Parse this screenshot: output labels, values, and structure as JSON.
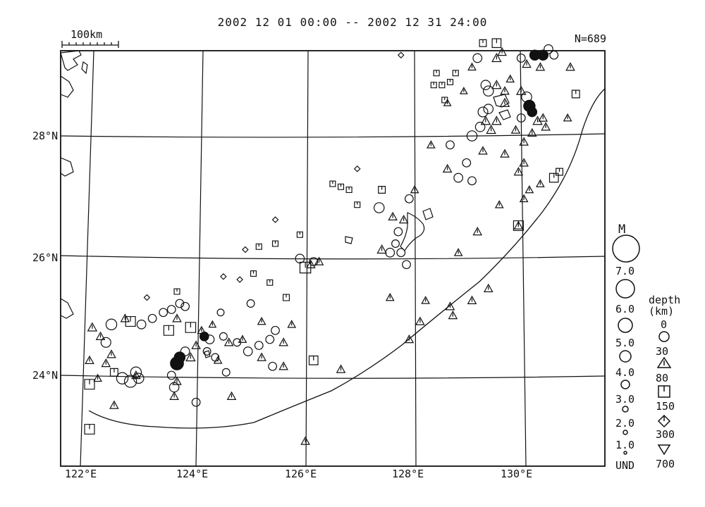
{
  "title": "2002 12 01 00:00 -- 2002 12 31 24:00",
  "count": "N=689",
  "scale_label": "100km",
  "lat_labels": [
    "28°N",
    "26°N",
    "24°N"
  ],
  "lon_labels": [
    "122°E",
    "124°E",
    "126°E",
    "128°E",
    "130°E"
  ],
  "magnitude_legend": {
    "title": "M",
    "labels": [
      "7.0",
      "6.0",
      "5.0",
      "4.0",
      "3.0",
      "2.0",
      "1.0",
      "UND"
    ]
  },
  "depth_legend": {
    "title_1": "depth",
    "title_2": "(km)",
    "labels": [
      "0",
      "30",
      "80",
      "150",
      "300",
      "700"
    ],
    "symbols": [
      "circle",
      "triangle",
      "square",
      "diamond",
      "inverted-triangle"
    ]
  },
  "chart_data": {
    "type": "scatter",
    "title": "2002 12 01 00:00 -- 2002 12 31 24:00",
    "count": 689,
    "xlim": [
      121.7,
      131.3
    ],
    "ylim": [
      22.3,
      29.5
    ],
    "events": [
      {
        "lon": 122.4,
        "lat": 24.85,
        "m": 2.8,
        "d": "circle"
      },
      {
        "lon": 122.3,
        "lat": 24.55,
        "m": 2.5,
        "d": "circle"
      },
      {
        "lon": 122.05,
        "lat": 24.8,
        "m": 2.2,
        "d": "triangle"
      },
      {
        "lon": 122.2,
        "lat": 24.65,
        "m": 2.0,
        "d": "triangle"
      },
      {
        "lon": 122.0,
        "lat": 24.25,
        "m": 2.0,
        "d": "triangle"
      },
      {
        "lon": 122.3,
        "lat": 24.2,
        "m": 2.0,
        "d": "triangle"
      },
      {
        "lon": 122.4,
        "lat": 24.35,
        "m": 2.0,
        "d": "triangle"
      },
      {
        "lon": 122.45,
        "lat": 24.05,
        "m": 1.8,
        "d": "square"
      },
      {
        "lon": 122.15,
        "lat": 23.95,
        "m": 1.8,
        "d": "triangle"
      },
      {
        "lon": 122.0,
        "lat": 23.85,
        "m": 2.5,
        "d": "square"
      },
      {
        "lon": 122.45,
        "lat": 23.5,
        "m": 2.0,
        "d": "triangle"
      },
      {
        "lon": 122.0,
        "lat": 23.1,
        "m": 2.5,
        "d": "square"
      },
      {
        "lon": 122.6,
        "lat": 23.95,
        "m": 3.0,
        "d": "circle"
      },
      {
        "lon": 122.75,
        "lat": 23.9,
        "m": 3.2,
        "d": "circle"
      },
      {
        "lon": 122.85,
        "lat": 24.05,
        "m": 2.8,
        "d": "circle"
      },
      {
        "lon": 122.9,
        "lat": 23.95,
        "m": 2.6,
        "d": "circle"
      },
      {
        "lon": 122.85,
        "lat": 24.0,
        "m": 2.0,
        "d": "triangle"
      },
      {
        "lon": 122.75,
        "lat": 24.9,
        "m": 2.5,
        "d": "square"
      },
      {
        "lon": 122.65,
        "lat": 24.95,
        "m": 2.0,
        "d": "triangle"
      },
      {
        "lon": 122.95,
        "lat": 24.85,
        "m": 2.2,
        "d": "circle"
      },
      {
        "lon": 123.15,
        "lat": 24.95,
        "m": 2.0,
        "d": "circle"
      },
      {
        "lon": 123.35,
        "lat": 25.05,
        "m": 2.0,
        "d": "circle"
      },
      {
        "lon": 123.5,
        "lat": 25.1,
        "m": 2.0,
        "d": "circle"
      },
      {
        "lon": 123.65,
        "lat": 25.2,
        "m": 2.0,
        "d": "circle"
      },
      {
        "lon": 123.75,
        "lat": 25.15,
        "m": 2.0,
        "d": "circle"
      },
      {
        "lon": 123.6,
        "lat": 24.95,
        "m": 2.0,
        "d": "triangle"
      },
      {
        "lon": 123.45,
        "lat": 24.75,
        "m": 2.5,
        "d": "square"
      },
      {
        "lon": 123.85,
        "lat": 24.8,
        "m": 2.6,
        "d": "square"
      },
      {
        "lon": 123.95,
        "lat": 24.5,
        "m": 2.0,
        "d": "triangle"
      },
      {
        "lon": 123.6,
        "lat": 24.2,
        "m": 3.5,
        "d": "circle",
        "filled": true
      },
      {
        "lon": 123.65,
        "lat": 24.3,
        "m": 2.8,
        "d": "circle",
        "filled": true
      },
      {
        "lon": 123.75,
        "lat": 24.4,
        "m": 2.2,
        "d": "circle"
      },
      {
        "lon": 123.85,
        "lat": 24.3,
        "m": 2.2,
        "d": "triangle"
      },
      {
        "lon": 123.5,
        "lat": 24.0,
        "m": 2.0,
        "d": "circle"
      },
      {
        "lon": 123.55,
        "lat": 23.8,
        "m": 2.4,
        "d": "circle"
      },
      {
        "lon": 123.6,
        "lat": 23.9,
        "m": 2.0,
        "d": "triangle"
      },
      {
        "lon": 123.55,
        "lat": 23.65,
        "m": 2.0,
        "d": "triangle"
      },
      {
        "lon": 123.95,
        "lat": 23.55,
        "m": 2.0,
        "d": "circle"
      },
      {
        "lon": 124.1,
        "lat": 24.65,
        "m": 2.2,
        "d": "circle",
        "filled": true
      },
      {
        "lon": 124.2,
        "lat": 24.6,
        "m": 2.2,
        "d": "circle"
      },
      {
        "lon": 124.05,
        "lat": 24.75,
        "m": 1.8,
        "d": "triangle"
      },
      {
        "lon": 124.15,
        "lat": 24.4,
        "m": 1.8,
        "d": "circle"
      },
      {
        "lon": 124.3,
        "lat": 24.3,
        "m": 1.8,
        "d": "circle"
      },
      {
        "lon": 124.35,
        "lat": 24.25,
        "m": 1.8,
        "d": "triangle"
      },
      {
        "lon": 124.25,
        "lat": 24.85,
        "m": 1.6,
        "d": "triangle"
      },
      {
        "lon": 124.45,
        "lat": 24.65,
        "m": 1.8,
        "d": "circle"
      },
      {
        "lon": 124.55,
        "lat": 24.55,
        "m": 2.0,
        "d": "triangle"
      },
      {
        "lon": 124.5,
        "lat": 24.05,
        "m": 1.8,
        "d": "circle"
      },
      {
        "lon": 124.6,
        "lat": 23.65,
        "m": 2.0,
        "d": "triangle"
      },
      {
        "lon": 124.7,
        "lat": 24.55,
        "m": 1.8,
        "d": "circle"
      },
      {
        "lon": 124.8,
        "lat": 24.6,
        "m": 1.8,
        "d": "triangle"
      },
      {
        "lon": 124.9,
        "lat": 24.4,
        "m": 2.2,
        "d": "circle"
      },
      {
        "lon": 125.1,
        "lat": 24.5,
        "m": 2.0,
        "d": "circle"
      },
      {
        "lon": 125.15,
        "lat": 24.3,
        "m": 2.0,
        "d": "triangle"
      },
      {
        "lon": 125.3,
        "lat": 24.6,
        "m": 2.0,
        "d": "circle"
      },
      {
        "lon": 125.4,
        "lat": 24.75,
        "m": 2.0,
        "d": "circle"
      },
      {
        "lon": 125.55,
        "lat": 24.55,
        "m": 2.0,
        "d": "triangle"
      },
      {
        "lon": 125.35,
        "lat": 24.15,
        "m": 2.0,
        "d": "circle"
      },
      {
        "lon": 125.55,
        "lat": 24.15,
        "m": 2.0,
        "d": "triangle"
      },
      {
        "lon": 125.7,
        "lat": 24.85,
        "m": 1.8,
        "d": "triangle"
      },
      {
        "lon": 124.95,
        "lat": 25.2,
        "m": 1.8,
        "d": "circle"
      },
      {
        "lon": 125.15,
        "lat": 24.9,
        "m": 1.8,
        "d": "triangle"
      },
      {
        "lon": 124.4,
        "lat": 25.05,
        "m": 1.6,
        "d": "circle"
      },
      {
        "lon": 125.6,
        "lat": 25.3,
        "m": 1.4,
        "d": "square"
      },
      {
        "lon": 125.85,
        "lat": 25.95,
        "m": 2.2,
        "d": "circle"
      },
      {
        "lon": 125.95,
        "lat": 25.8,
        "m": 2.8,
        "d": "square"
      },
      {
        "lon": 126.05,
        "lat": 25.85,
        "m": 2.0,
        "d": "triangle"
      },
      {
        "lon": 126.2,
        "lat": 25.9,
        "m": 2.0,
        "d": "triangle"
      },
      {
        "lon": 126.1,
        "lat": 25.9,
        "m": 2.0,
        "d": "circle"
      },
      {
        "lon": 126.1,
        "lat": 24.25,
        "m": 2.2,
        "d": "square"
      },
      {
        "lon": 126.6,
        "lat": 24.1,
        "m": 2.0,
        "d": "triangle"
      },
      {
        "lon": 125.95,
        "lat": 22.9,
        "m": 2.0,
        "d": "triangle"
      },
      {
        "lon": 124.75,
        "lat": 25.6,
        "m": 1.2,
        "d": "diamond"
      },
      {
        "lon": 125.0,
        "lat": 25.7,
        "m": 1.2,
        "d": "square"
      },
      {
        "lon": 125.3,
        "lat": 25.55,
        "m": 1.2,
        "d": "square"
      },
      {
        "lon": 124.85,
        "lat": 26.1,
        "m": 1.2,
        "d": "diamond"
      },
      {
        "lon": 125.1,
        "lat": 26.15,
        "m": 1.2,
        "d": "square"
      },
      {
        "lon": 125.4,
        "lat": 26.2,
        "m": 1.2,
        "d": "square"
      },
      {
        "lon": 125.4,
        "lat": 26.6,
        "m": 1.2,
        "d": "diamond"
      },
      {
        "lon": 125.85,
        "lat": 26.35,
        "m": 1.2,
        "d": "square"
      },
      {
        "lon": 123.05,
        "lat": 25.3,
        "m": 1.2,
        "d": "diamond"
      },
      {
        "lon": 123.6,
        "lat": 25.4,
        "m": 1.2,
        "d": "square"
      },
      {
        "lon": 124.45,
        "lat": 25.65,
        "m": 1.2,
        "d": "diamond"
      },
      {
        "lon": 126.45,
        "lat": 27.2,
        "m": 1.2,
        "d": "square"
      },
      {
        "lon": 126.6,
        "lat": 27.15,
        "m": 1.2,
        "d": "square"
      },
      {
        "lon": 126.75,
        "lat": 27.1,
        "m": 1.2,
        "d": "square"
      },
      {
        "lon": 126.9,
        "lat": 27.45,
        "m": 1.2,
        "d": "diamond"
      },
      {
        "lon": 126.9,
        "lat": 26.85,
        "m": 1.2,
        "d": "square"
      },
      {
        "lon": 127.35,
        "lat": 27.1,
        "m": 1.6,
        "d": "square"
      },
      {
        "lon": 127.3,
        "lat": 26.8,
        "m": 2.6,
        "d": "circle"
      },
      {
        "lon": 127.85,
        "lat": 26.95,
        "m": 2.0,
        "d": "circle"
      },
      {
        "lon": 127.95,
        "lat": 27.1,
        "m": 1.8,
        "d": "triangle"
      },
      {
        "lon": 127.55,
        "lat": 26.65,
        "m": 2.0,
        "d": "triangle"
      },
      {
        "lon": 127.75,
        "lat": 26.6,
        "m": 2.0,
        "d": "triangle"
      },
      {
        "lon": 127.65,
        "lat": 26.4,
        "m": 2.0,
        "d": "circle"
      },
      {
        "lon": 127.6,
        "lat": 26.2,
        "m": 1.8,
        "d": "circle"
      },
      {
        "lon": 127.35,
        "lat": 26.1,
        "m": 2.2,
        "d": "triangle"
      },
      {
        "lon": 127.5,
        "lat": 26.05,
        "m": 2.2,
        "d": "circle"
      },
      {
        "lon": 127.7,
        "lat": 26.05,
        "m": 2.0,
        "d": "circle"
      },
      {
        "lon": 127.8,
        "lat": 25.85,
        "m": 2.0,
        "d": "circle"
      },
      {
        "lon": 127.5,
        "lat": 25.3,
        "m": 1.8,
        "d": "triangle"
      },
      {
        "lon": 128.15,
        "lat": 25.25,
        "m": 1.8,
        "d": "triangle"
      },
      {
        "lon": 128.05,
        "lat": 24.9,
        "m": 2.0,
        "d": "triangle"
      },
      {
        "lon": 127.85,
        "lat": 24.6,
        "m": 2.0,
        "d": "triangle"
      },
      {
        "lon": 128.6,
        "lat": 25.15,
        "m": 2.0,
        "d": "triangle"
      },
      {
        "lon": 128.65,
        "lat": 25.0,
        "m": 2.0,
        "d": "triangle"
      },
      {
        "lon": 129.0,
        "lat": 25.25,
        "m": 2.0,
        "d": "triangle"
      },
      {
        "lon": 129.3,
        "lat": 25.45,
        "m": 2.0,
        "d": "triangle"
      },
      {
        "lon": 128.75,
        "lat": 26.05,
        "m": 1.8,
        "d": "triangle"
      },
      {
        "lon": 129.1,
        "lat": 26.4,
        "m": 2.0,
        "d": "triangle"
      },
      {
        "lon": 129.85,
        "lat": 26.5,
        "m": 2.5,
        "d": "square"
      },
      {
        "lon": 129.85,
        "lat": 26.5,
        "m": 2.0,
        "d": "triangle"
      },
      {
        "lon": 129.5,
        "lat": 26.85,
        "m": 1.8,
        "d": "triangle"
      },
      {
        "lon": 129.95,
        "lat": 26.95,
        "m": 1.8,
        "d": "triangle"
      },
      {
        "lon": 130.05,
        "lat": 27.1,
        "m": 1.8,
        "d": "triangle"
      },
      {
        "lon": 130.25,
        "lat": 27.2,
        "m": 1.8,
        "d": "triangle"
      },
      {
        "lon": 130.5,
        "lat": 27.3,
        "m": 2.2,
        "d": "square"
      },
      {
        "lon": 130.6,
        "lat": 27.4,
        "m": 1.6,
        "d": "square"
      },
      {
        "lon": 129.85,
        "lat": 27.4,
        "m": 2.0,
        "d": "triangle"
      },
      {
        "lon": 129.95,
        "lat": 27.55,
        "m": 2.0,
        "d": "triangle"
      },
      {
        "lon": 128.55,
        "lat": 27.45,
        "m": 2.0,
        "d": "triangle"
      },
      {
        "lon": 128.75,
        "lat": 27.3,
        "m": 2.2,
        "d": "circle"
      },
      {
        "lon": 129.0,
        "lat": 27.25,
        "m": 2.0,
        "d": "circle"
      },
      {
        "lon": 128.9,
        "lat": 27.55,
        "m": 2.0,
        "d": "circle"
      },
      {
        "lon": 129.2,
        "lat": 27.75,
        "m": 2.0,
        "d": "triangle"
      },
      {
        "lon": 129.6,
        "lat": 27.7,
        "m": 2.0,
        "d": "triangle"
      },
      {
        "lon": 128.25,
        "lat": 27.85,
        "m": 1.8,
        "d": "triangle"
      },
      {
        "lon": 128.6,
        "lat": 27.85,
        "m": 2.0,
        "d": "circle"
      },
      {
        "lon": 129.0,
        "lat": 28.0,
        "m": 2.6,
        "d": "circle"
      },
      {
        "lon": 129.15,
        "lat": 28.15,
        "m": 2.4,
        "d": "circle"
      },
      {
        "lon": 129.25,
        "lat": 28.25,
        "m": 2.2,
        "d": "triangle"
      },
      {
        "lon": 129.35,
        "lat": 28.1,
        "m": 2.2,
        "d": "triangle"
      },
      {
        "lon": 129.45,
        "lat": 28.25,
        "m": 2.2,
        "d": "triangle"
      },
      {
        "lon": 129.2,
        "lat": 28.4,
        "m": 2.5,
        "d": "circle"
      },
      {
        "lon": 129.3,
        "lat": 28.45,
        "m": 2.4,
        "d": "circle"
      },
      {
        "lon": 129.6,
        "lat": 28.55,
        "m": 2.2,
        "d": "triangle"
      },
      {
        "lon": 129.8,
        "lat": 28.1,
        "m": 2.0,
        "d": "triangle"
      },
      {
        "lon": 129.95,
        "lat": 27.9,
        "m": 2.0,
        "d": "triangle"
      },
      {
        "lon": 129.3,
        "lat": 28.75,
        "m": 2.6,
        "d": "circle"
      },
      {
        "lon": 129.25,
        "lat": 28.85,
        "m": 2.4,
        "d": "circle"
      },
      {
        "lon": 129.45,
        "lat": 28.85,
        "m": 2.2,
        "d": "triangle"
      },
      {
        "lon": 129.6,
        "lat": 28.75,
        "m": 2.0,
        "d": "triangle"
      },
      {
        "lon": 129.7,
        "lat": 28.95,
        "m": 1.8,
        "d": "triangle"
      },
      {
        "lon": 129.9,
        "lat": 28.75,
        "m": 2.2,
        "d": "triangle"
      },
      {
        "lon": 130.0,
        "lat": 28.65,
        "m": 2.6,
        "d": "circle"
      },
      {
        "lon": 130.05,
        "lat": 28.5,
        "m": 3.0,
        "d": "circle",
        "filled": true
      },
      {
        "lon": 130.1,
        "lat": 28.4,
        "m": 2.4,
        "d": "circle",
        "filled": true
      },
      {
        "lon": 130.2,
        "lat": 28.25,
        "m": 2.2,
        "d": "triangle"
      },
      {
        "lon": 130.35,
        "lat": 28.15,
        "m": 2.0,
        "d": "triangle"
      },
      {
        "lon": 130.1,
        "lat": 28.05,
        "m": 2.0,
        "d": "triangle"
      },
      {
        "lon": 130.3,
        "lat": 28.3,
        "m": 2.0,
        "d": "triangle"
      },
      {
        "lon": 129.9,
        "lat": 28.3,
        "m": 2.0,
        "d": "circle"
      },
      {
        "lon": 130.75,
        "lat": 28.3,
        "m": 1.8,
        "d": "triangle"
      },
      {
        "lon": 130.9,
        "lat": 28.7,
        "m": 1.8,
        "d": "square"
      },
      {
        "lon": 128.85,
        "lat": 28.75,
        "m": 1.6,
        "d": "triangle"
      },
      {
        "lon": 128.55,
        "lat": 28.55,
        "m": 1.6,
        "d": "triangle"
      },
      {
        "lon": 128.3,
        "lat": 28.85,
        "m": 1.2,
        "d": "square"
      },
      {
        "lon": 128.45,
        "lat": 28.85,
        "m": 1.2,
        "d": "square"
      },
      {
        "lon": 128.6,
        "lat": 28.9,
        "m": 1.2,
        "d": "square"
      },
      {
        "lon": 128.35,
        "lat": 29.05,
        "m": 1.2,
        "d": "square"
      },
      {
        "lon": 128.7,
        "lat": 29.05,
        "m": 1.2,
        "d": "square"
      },
      {
        "lon": 128.5,
        "lat": 28.6,
        "m": 1.2,
        "d": "square"
      },
      {
        "lon": 129.1,
        "lat": 29.3,
        "m": 2.2,
        "d": "circle"
      },
      {
        "lon": 129.0,
        "lat": 29.15,
        "m": 1.8,
        "d": "triangle"
      },
      {
        "lon": 129.45,
        "lat": 29.3,
        "m": 2.2,
        "d": "triangle"
      },
      {
        "lon": 129.55,
        "lat": 29.4,
        "m": 2.0,
        "d": "triangle"
      },
      {
        "lon": 129.45,
        "lat": 29.55,
        "m": 2.2,
        "d": "square"
      },
      {
        "lon": 129.2,
        "lat": 29.55,
        "m": 1.6,
        "d": "square"
      },
      {
        "lon": 129.9,
        "lat": 29.3,
        "m": 2.0,
        "d": "circle"
      },
      {
        "lon": 130.0,
        "lat": 29.2,
        "m": 2.0,
        "d": "triangle"
      },
      {
        "lon": 130.15,
        "lat": 29.35,
        "m": 2.6,
        "d": "circle",
        "filled": true
      },
      {
        "lon": 130.3,
        "lat": 29.35,
        "m": 2.6,
        "d": "circle",
        "filled": true
      },
      {
        "lon": 130.4,
        "lat": 29.45,
        "m": 2.2,
        "d": "circle"
      },
      {
        "lon": 130.5,
        "lat": 29.35,
        "m": 2.0,
        "d": "circle"
      },
      {
        "lon": 130.25,
        "lat": 29.15,
        "m": 2.0,
        "d": "triangle"
      },
      {
        "lon": 130.8,
        "lat": 29.15,
        "m": 2.0,
        "d": "triangle"
      },
      {
        "lon": 127.7,
        "lat": 29.35,
        "m": 1.2,
        "d": "diamond"
      }
    ]
  }
}
